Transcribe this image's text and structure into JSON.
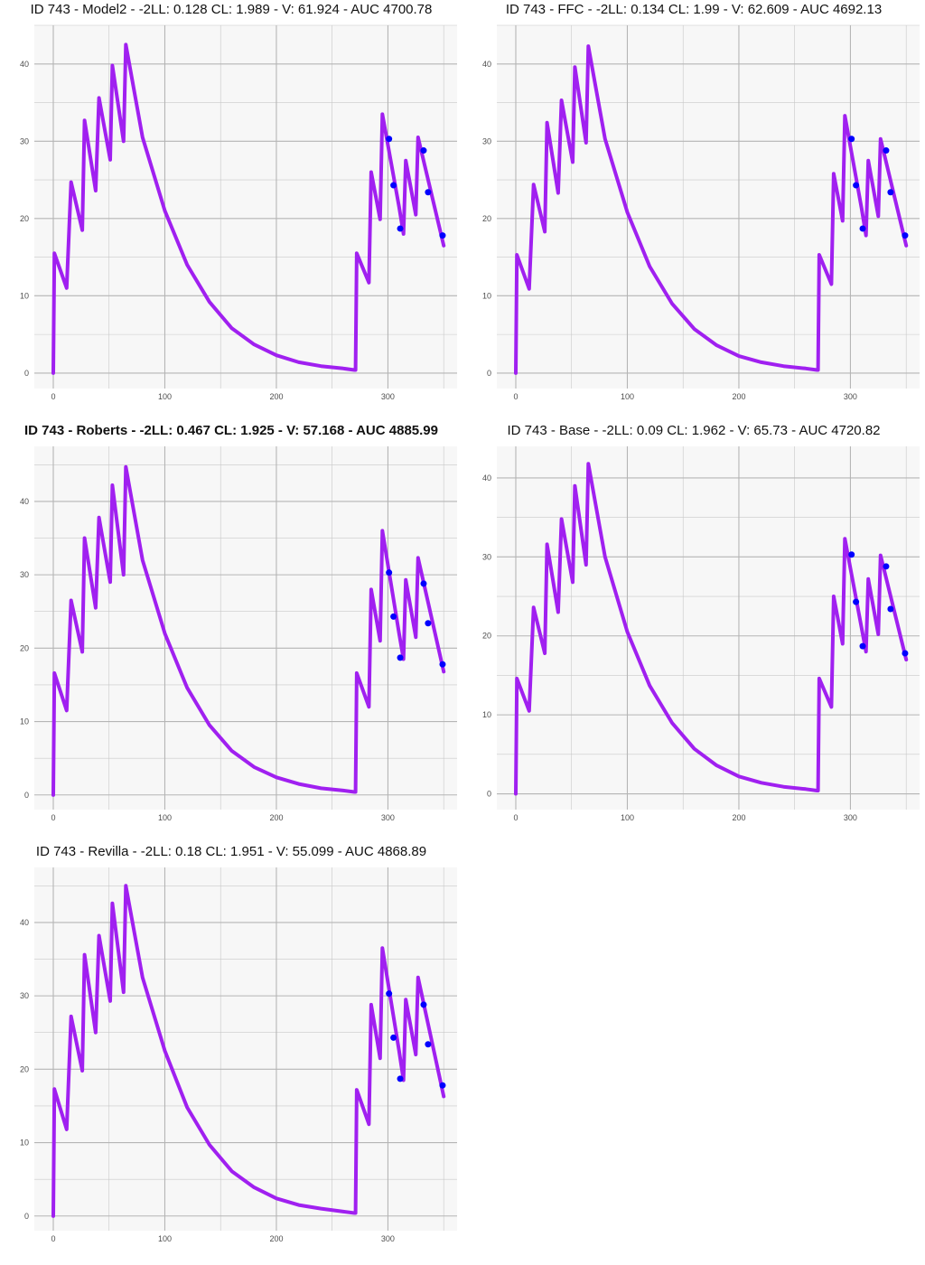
{
  "chart_data": [
    {
      "type": "line",
      "title": "ID 743 - Model2 - -2LL: 0.128 CL: 1.989 - V: 61.924 - AUC 4700.78",
      "title_bold": false,
      "xlim": [
        -17,
        362
      ],
      "ylim": [
        -2,
        45
      ],
      "xticks": [
        0,
        100,
        200,
        300
      ],
      "yticks": [
        0,
        10,
        20,
        30,
        40
      ],
      "line_color": "#A020F0",
      "point_color": "#0000FF",
      "series": [
        {
          "values": [
            [
              0,
              0
            ],
            [
              1,
              15.5
            ],
            [
              12,
              11
            ],
            [
              16,
              24.7
            ],
            [
              26,
              18.5
            ],
            [
              28,
              32.7
            ],
            [
              38,
              23.6
            ],
            [
              41,
              35.6
            ],
            [
              51,
              27.6
            ],
            [
              53,
              39.8
            ],
            [
              63,
              30
            ],
            [
              65,
              42.5
            ],
            [
              80,
              30.5
            ],
            [
              100,
              21
            ],
            [
              120,
              14
            ],
            [
              140,
              9.2
            ],
            [
              160,
              5.8
            ],
            [
              180,
              3.7
            ],
            [
              200,
              2.3
            ],
            [
              220,
              1.4
            ],
            [
              240,
              0.9
            ],
            [
              260,
              0.6
            ],
            [
              270,
              0.4
            ],
            [
              271,
              0.4
            ],
            [
              272,
              15.5
            ],
            [
              283,
              11.7
            ],
            [
              285,
              26
            ],
            [
              293,
              19.9
            ],
            [
              295,
              33.5
            ],
            [
              310,
              21.5
            ],
            [
              314,
              18
            ],
            [
              316,
              27.5
            ],
            [
              325,
              20.5
            ],
            [
              327,
              30.5
            ],
            [
              350,
              16.5
            ]
          ]
        }
      ],
      "points": [
        [
          301,
          30.3
        ],
        [
          305,
          24.3
        ],
        [
          311,
          18.7
        ],
        [
          332,
          28.8
        ],
        [
          336,
          23.4
        ],
        [
          349,
          17.8
        ]
      ]
    },
    {
      "type": "line",
      "title": "ID 743 - FFC - -2LL: 0.134 CL: 1.99 - V: 62.609 - AUC 4692.13",
      "title_bold": false,
      "xlim": [
        -17,
        362
      ],
      "ylim": [
        -2,
        45
      ],
      "xticks": [
        0,
        100,
        200,
        300
      ],
      "yticks": [
        0,
        10,
        20,
        30,
        40
      ],
      "line_color": "#A020F0",
      "point_color": "#0000FF",
      "series": [
        {
          "values": [
            [
              0,
              0
            ],
            [
              1,
              15.3
            ],
            [
              12,
              10.9
            ],
            [
              16,
              24.4
            ],
            [
              26,
              18.3
            ],
            [
              28,
              32.4
            ],
            [
              38,
              23.3
            ],
            [
              41,
              35.3
            ],
            [
              51,
              27.3
            ],
            [
              53,
              39.6
            ],
            [
              63,
              29.8
            ],
            [
              65,
              42.3
            ],
            [
              80,
              30.3
            ],
            [
              100,
              20.8
            ],
            [
              120,
              13.8
            ],
            [
              140,
              9
            ],
            [
              160,
              5.7
            ],
            [
              180,
              3.6
            ],
            [
              200,
              2.2
            ],
            [
              220,
              1.4
            ],
            [
              240,
              0.9
            ],
            [
              260,
              0.6
            ],
            [
              270,
              0.4
            ],
            [
              271,
              0.4
            ],
            [
              272,
              15.3
            ],
            [
              283,
              11.5
            ],
            [
              285,
              25.8
            ],
            [
              293,
              19.7
            ],
            [
              295,
              33.3
            ],
            [
              310,
              21.3
            ],
            [
              314,
              17.8
            ],
            [
              316,
              27.5
            ],
            [
              325,
              20.3
            ],
            [
              327,
              30.3
            ],
            [
              350,
              16.5
            ]
          ]
        }
      ],
      "points": [
        [
          301,
          30.3
        ],
        [
          305,
          24.3
        ],
        [
          311,
          18.7
        ],
        [
          332,
          28.8
        ],
        [
          336,
          23.4
        ],
        [
          349,
          17.8
        ]
      ]
    },
    {
      "type": "line",
      "title": "ID 743 - Roberts - -2LL: 0.467 CL: 1.925 - V: 57.168 - AUC 4885.99",
      "title_bold": true,
      "xlim": [
        -17,
        362
      ],
      "ylim": [
        -2,
        47.5
      ],
      "xticks": [
        0,
        100,
        200,
        300
      ],
      "yticks": [
        0,
        10,
        20,
        30,
        40
      ],
      "line_color": "#A020F0",
      "point_color": "#0000FF",
      "series": [
        {
          "values": [
            [
              0,
              0
            ],
            [
              1,
              16.6
            ],
            [
              12,
              11.5
            ],
            [
              16,
              26.5
            ],
            [
              26,
              19.5
            ],
            [
              28,
              35
            ],
            [
              38,
              25.5
            ],
            [
              41,
              37.8
            ],
            [
              51,
              29
            ],
            [
              53,
              42.2
            ],
            [
              63,
              30
            ],
            [
              65,
              44.7
            ],
            [
              80,
              32
            ],
            [
              100,
              22
            ],
            [
              120,
              14.6
            ],
            [
              140,
              9.5
            ],
            [
              160,
              6
            ],
            [
              180,
              3.8
            ],
            [
              200,
              2.4
            ],
            [
              220,
              1.5
            ],
            [
              240,
              0.9
            ],
            [
              260,
              0.6
            ],
            [
              270,
              0.4
            ],
            [
              271,
              0.4
            ],
            [
              272,
              16.6
            ],
            [
              283,
              12
            ],
            [
              285,
              28
            ],
            [
              293,
              21
            ],
            [
              295,
              36
            ],
            [
              310,
              22
            ],
            [
              314,
              18.5
            ],
            [
              316,
              29.3
            ],
            [
              325,
              21.5
            ],
            [
              327,
              32.3
            ],
            [
              350,
              16.8
            ]
          ]
        }
      ],
      "points": [
        [
          301,
          30.3
        ],
        [
          305,
          24.3
        ],
        [
          311,
          18.7
        ],
        [
          332,
          28.8
        ],
        [
          336,
          23.4
        ],
        [
          349,
          17.8
        ]
      ]
    },
    {
      "type": "line",
      "title": "ID 743 - Base - -2LL: 0.09 CL: 1.962 - V: 65.73 - AUC 4720.82",
      "title_bold": false,
      "xlim": [
        -17,
        362
      ],
      "ylim": [
        -2,
        44
      ],
      "xticks": [
        0,
        100,
        200,
        300
      ],
      "yticks": [
        0,
        10,
        20,
        30,
        40
      ],
      "line_color": "#A020F0",
      "point_color": "#0000FF",
      "series": [
        {
          "values": [
            [
              0,
              0
            ],
            [
              1,
              14.6
            ],
            [
              12,
              10.5
            ],
            [
              16,
              23.6
            ],
            [
              26,
              17.8
            ],
            [
              28,
              31.6
            ],
            [
              38,
              23
            ],
            [
              41,
              34.8
            ],
            [
              51,
              26.8
            ],
            [
              53,
              39
            ],
            [
              63,
              29
            ],
            [
              65,
              41.8
            ],
            [
              80,
              30
            ],
            [
              100,
              20.5
            ],
            [
              120,
              13.7
            ],
            [
              140,
              9
            ],
            [
              160,
              5.7
            ],
            [
              180,
              3.6
            ],
            [
              200,
              2.2
            ],
            [
              220,
              1.4
            ],
            [
              240,
              0.9
            ],
            [
              260,
              0.6
            ],
            [
              270,
              0.4
            ],
            [
              271,
              0.4
            ],
            [
              272,
              14.6
            ],
            [
              283,
              11
            ],
            [
              285,
              25
            ],
            [
              293,
              19
            ],
            [
              295,
              32.3
            ],
            [
              310,
              21
            ],
            [
              314,
              18
            ],
            [
              316,
              27.2
            ],
            [
              325,
              20.2
            ],
            [
              327,
              30.2
            ],
            [
              350,
              17
            ]
          ]
        }
      ],
      "points": [
        [
          301,
          30.3
        ],
        [
          305,
          24.3
        ],
        [
          311,
          18.7
        ],
        [
          332,
          28.8
        ],
        [
          336,
          23.4
        ],
        [
          349,
          17.8
        ]
      ]
    },
    {
      "type": "line",
      "title": "ID 743 - Revilla - -2LL: 0.18 CL: 1.951 - V: 55.099 - AUC 4868.89",
      "title_bold": false,
      "xlim": [
        -17,
        362
      ],
      "ylim": [
        -2,
        47.5
      ],
      "xticks": [
        0,
        100,
        200,
        300
      ],
      "yticks": [
        0,
        10,
        20,
        30,
        40
      ],
      "line_color": "#A020F0",
      "point_color": "#0000FF",
      "series": [
        {
          "values": [
            [
              0,
              0
            ],
            [
              1,
              17.3
            ],
            [
              12,
              11.8
            ],
            [
              16,
              27.2
            ],
            [
              26,
              19.8
            ],
            [
              28,
              35.6
            ],
            [
              38,
              25
            ],
            [
              41,
              38.2
            ],
            [
              51,
              29.3
            ],
            [
              53,
              42.6
            ],
            [
              63,
              30.5
            ],
            [
              65,
              45
            ],
            [
              80,
              32.5
            ],
            [
              100,
              22.5
            ],
            [
              120,
              14.8
            ],
            [
              140,
              9.7
            ],
            [
              160,
              6.1
            ],
            [
              180,
              3.9
            ],
            [
              200,
              2.4
            ],
            [
              220,
              1.5
            ],
            [
              240,
              1
            ],
            [
              260,
              0.6
            ],
            [
              270,
              0.4
            ],
            [
              271,
              0.4
            ],
            [
              272,
              17.2
            ],
            [
              283,
              12.5
            ],
            [
              285,
              28.8
            ],
            [
              293,
              21.5
            ],
            [
              295,
              36.5
            ],
            [
              310,
              22.5
            ],
            [
              314,
              18.5
            ],
            [
              316,
              29.5
            ],
            [
              325,
              22
            ],
            [
              327,
              32.5
            ],
            [
              350,
              16.3
            ]
          ]
        }
      ],
      "points": [
        [
          301,
          30.3
        ],
        [
          305,
          24.3
        ],
        [
          311,
          18.7
        ],
        [
          332,
          28.8
        ],
        [
          336,
          23.4
        ],
        [
          349,
          17.8
        ]
      ]
    }
  ]
}
